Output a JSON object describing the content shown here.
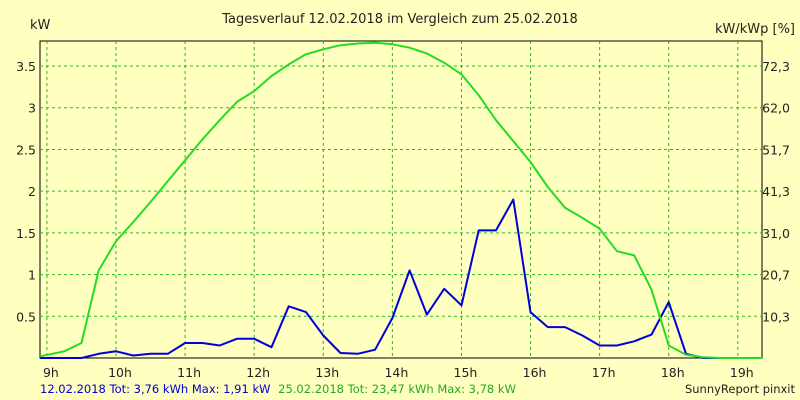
{
  "chart_data": {
    "type": "line",
    "title": "Tagesverlauf 12.02.2018 im Vergleich zum 25.02.2018",
    "ylabel_left": "kW",
    "ylabel_right": "kW/kWp [%]",
    "x_ticks": [
      "9h",
      "10h",
      "11h",
      "12h",
      "13h",
      "14h",
      "15h",
      "16h",
      "17h",
      "18h",
      "19h"
    ],
    "y_ticks_left": [
      "0.5",
      "1",
      "1.5",
      "2",
      "2.5",
      "3",
      "3.5"
    ],
    "y_ticks_right": [
      "10,3",
      "20,7",
      "31,0",
      "41,3",
      "51,7",
      "62,0",
      "72,3"
    ],
    "xlim": [
      8.9,
      19.35
    ],
    "ylim": [
      0,
      3.8
    ],
    "grid": true,
    "series": [
      {
        "name": "12.02.2018",
        "color": "#0000dd",
        "x": [
          8.9,
          9.25,
          9.5,
          9.75,
          10.0,
          10.25,
          10.5,
          10.75,
          11.0,
          11.25,
          11.5,
          11.75,
          12.0,
          12.25,
          12.5,
          12.75,
          13.0,
          13.25,
          13.5,
          13.75,
          14.0,
          14.25,
          14.5,
          14.75,
          15.0,
          15.25,
          15.5,
          15.75,
          16.0,
          16.25,
          16.5,
          16.75,
          17.0,
          17.25,
          17.5,
          17.75,
          18.0,
          18.25,
          18.5,
          18.75,
          19.0,
          19.35
        ],
        "y": [
          0,
          0,
          0,
          0.05,
          0.08,
          0.03,
          0.05,
          0.05,
          0.18,
          0.18,
          0.15,
          0.23,
          0.23,
          0.13,
          0.62,
          0.55,
          0.27,
          0.06,
          0.05,
          0.1,
          0.48,
          1.05,
          0.52,
          0.83,
          0.63,
          1.53,
          1.53,
          1.9,
          0.55,
          0.37,
          0.37,
          0.27,
          0.15,
          0.15,
          0.2,
          0.28,
          0.67,
          0.05,
          0,
          0,
          0,
          0
        ]
      },
      {
        "name": "25.02.2018",
        "color": "#22dd22",
        "x": [
          8.9,
          9.25,
          9.5,
          9.75,
          10.0,
          10.25,
          10.5,
          10.75,
          11.0,
          11.25,
          11.5,
          11.75,
          12.0,
          12.25,
          12.5,
          12.75,
          13.0,
          13.25,
          13.5,
          13.75,
          14.0,
          14.25,
          14.5,
          14.75,
          15.0,
          15.25,
          15.5,
          15.75,
          16.0,
          16.25,
          16.5,
          16.75,
          17.0,
          17.25,
          17.5,
          17.75,
          18.0,
          18.25,
          18.5,
          18.75,
          19.0,
          19.35
        ],
        "y": [
          0.02,
          0.08,
          0.18,
          1.05,
          1.4,
          1.63,
          1.87,
          2.12,
          2.37,
          2.62,
          2.85,
          3.07,
          3.2,
          3.38,
          3.52,
          3.64,
          3.7,
          3.75,
          3.77,
          3.78,
          3.76,
          3.72,
          3.65,
          3.54,
          3.4,
          3.15,
          2.85,
          2.6,
          2.35,
          2.05,
          1.8,
          1.68,
          1.55,
          1.28,
          1.23,
          0.82,
          0.15,
          0.04,
          0.01,
          0,
          0,
          0
        ]
      }
    ],
    "footer": {
      "series1_text": "12.02.2018 Tot: 3,76 kWh Max: 1,91 kW",
      "series2_text": "25.02.2018 Tot: 23,47 kWh Max: 3,78 kW",
      "credit": "SunnyReport pinxit"
    }
  }
}
